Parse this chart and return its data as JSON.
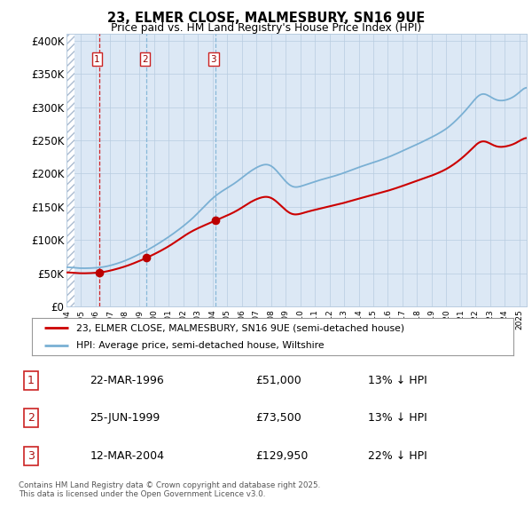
{
  "title1": "23, ELMER CLOSE, MALMESBURY, SN16 9UE",
  "title2": "Price paid vs. HM Land Registry's House Price Index (HPI)",
  "legend_line1": "23, ELMER CLOSE, MALMESBURY, SN16 9UE (semi-detached house)",
  "legend_line2": "HPI: Average price, semi-detached house, Wiltshire",
  "transactions": [
    {
      "num": 1,
      "date": "22-MAR-1996",
      "price": 51000,
      "pct": "13% ↓ HPI",
      "year": 1996.22
    },
    {
      "num": 2,
      "date": "25-JUN-1999",
      "price": 73500,
      "pct": "13% ↓ HPI",
      "year": 1999.48
    },
    {
      "num": 3,
      "date": "12-MAR-2004",
      "price": 129950,
      "pct": "22% ↓ HPI",
      "year": 2004.19
    }
  ],
  "footer": "Contains HM Land Registry data © Crown copyright and database right 2025.\nThis data is licensed under the Open Government Licence v3.0.",
  "ylim": [
    0,
    410000
  ],
  "yticks": [
    0,
    50000,
    100000,
    150000,
    200000,
    250000,
    300000,
    350000,
    400000
  ],
  "ytick_labels": [
    "£0",
    "£50K",
    "£100K",
    "£150K",
    "£200K",
    "£250K",
    "£300K",
    "£350K",
    "£400K"
  ],
  "red_color": "#cc0000",
  "blue_color": "#7ab0d4",
  "bg_color": "#dce8f5",
  "grid_color": "#b8cce0",
  "hatch_color": "#aabbd0",
  "dot_color": "#bb0000",
  "fig_w": 6.0,
  "fig_h": 5.9
}
